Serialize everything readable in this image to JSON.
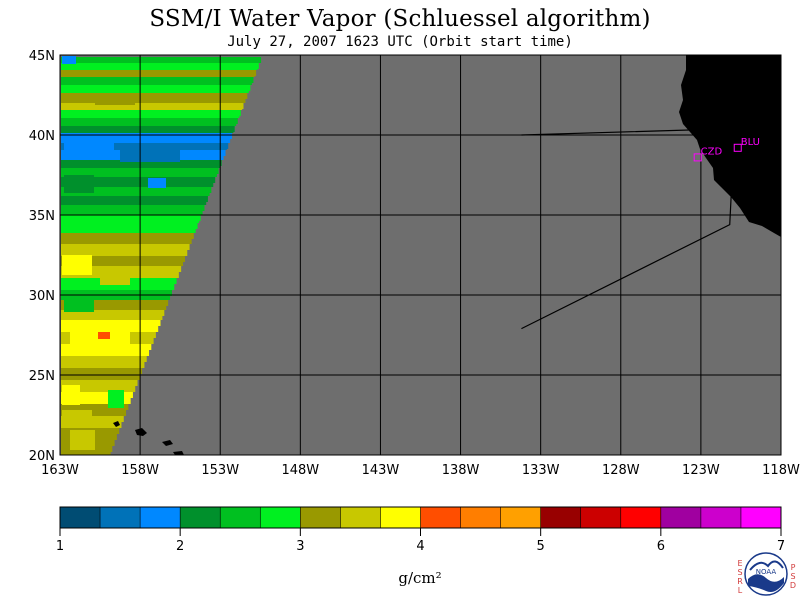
{
  "header": {
    "title": "SSM/I Water Vapor (Schluessel algorithm)",
    "subtitle": "July 27, 2007  1623 UTC  (Orbit start time)"
  },
  "map": {
    "lat_labels": [
      "45N",
      "40N",
      "35N",
      "30N",
      "25N",
      "20N"
    ],
    "lat_values": [
      45,
      40,
      35,
      30,
      25,
      20
    ],
    "lon_labels": [
      "163W",
      "158W",
      "153W",
      "148W",
      "143W",
      "138W",
      "133W",
      "128W",
      "123W",
      "118W"
    ],
    "lon_values": [
      -163,
      -158,
      -153,
      -148,
      -143,
      -138,
      -133,
      -128,
      -123,
      -118
    ],
    "lat_range": [
      20,
      45
    ],
    "lon_range": [
      -163,
      -118
    ],
    "grid": true,
    "background_color": "#6e6e6e",
    "land_color": "#000000",
    "stations": [
      {
        "code": "CZD",
        "lat": 38.6,
        "lon": -123.2
      },
      {
        "code": "BLU",
        "lat": 39.2,
        "lon": -120.7
      }
    ],
    "study_region": [
      [
        40,
        -134.2
      ],
      [
        40.4,
        -120.9
      ],
      [
        34.4,
        -121.2
      ],
      [
        27.9,
        -134.2
      ]
    ]
  },
  "colorbar": {
    "tick_labels": [
      "1",
      "2",
      "3",
      "4",
      "5",
      "6",
      "7"
    ],
    "unit": "g/cm²",
    "colors": [
      "#004c73",
      "#0072b8",
      "#0088ff",
      "#00902c",
      "#00c020",
      "#00f020",
      "#999900",
      "#c8c800",
      "#ffff00",
      "#ff4e00",
      "#ff7e00",
      "#ffa000",
      "#980000",
      "#cc0000",
      "#ff0000",
      "#a000a0",
      "#cc00cc",
      "#ff00ff"
    ]
  },
  "logo": {
    "left_letters": [
      "E",
      "S",
      "R",
      "L"
    ],
    "right_letters": [
      "P",
      "S",
      "D"
    ],
    "name": "NOAA"
  }
}
